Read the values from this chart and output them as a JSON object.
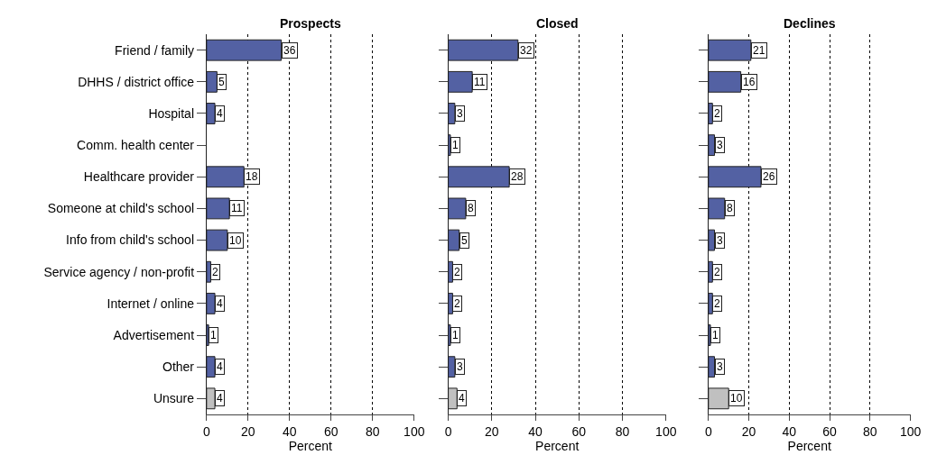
{
  "chart_data": [
    {
      "type": "bar",
      "orientation": "horizontal",
      "title": "Prospects",
      "xlabel": "Percent",
      "categories": [
        "Friend / family",
        "DHHS / district office",
        "Hospital",
        "Comm. health center",
        "Healthcare provider",
        "Someone at child's school",
        "Info from child's school",
        "Service agency / non-profit",
        "Internet / online",
        "Advertisement",
        "Other",
        "Unsure"
      ],
      "values": [
        36,
        5,
        4,
        null,
        18,
        11,
        10,
        2,
        4,
        1,
        4,
        4
      ],
      "colors": [
        "#5361a3",
        "#5361a3",
        "#5361a3",
        "#5361a3",
        "#5361a3",
        "#5361a3",
        "#5361a3",
        "#5361a3",
        "#5361a3",
        "#5361a3",
        "#5361a3",
        "#c0c0c0"
      ],
      "xlim": [
        0,
        100
      ],
      "xticks": [
        0,
        20,
        40,
        60,
        80,
        100
      ],
      "grid": "x",
      "data_labels": true
    },
    {
      "type": "bar",
      "orientation": "horizontal",
      "title": "Closed",
      "xlabel": "Percent",
      "categories": [
        null,
        null,
        null,
        null,
        null,
        null,
        null,
        null,
        null,
        null,
        null,
        null
      ],
      "values": [
        32,
        11,
        3,
        1,
        28,
        8,
        5,
        2,
        2,
        1,
        3,
        4
      ],
      "colors": [
        "#5361a3",
        "#5361a3",
        "#5361a3",
        "#5361a3",
        "#5361a3",
        "#5361a3",
        "#5361a3",
        "#5361a3",
        "#5361a3",
        "#5361a3",
        "#5361a3",
        "#c0c0c0"
      ],
      "xlim": [
        0,
        100
      ],
      "xticks": [
        0,
        20,
        40,
        60,
        80,
        100
      ],
      "grid": "x",
      "data_labels": true,
      "tick_labels": "x"
    },
    {
      "type": "bar",
      "orientation": "horizontal",
      "title": "Declines",
      "xlabel": "Percent",
      "categories": [
        null,
        null,
        null,
        null,
        null,
        null,
        null,
        null,
        null,
        null,
        null,
        null
      ],
      "values": [
        21,
        16,
        2,
        3,
        26,
        8,
        3,
        2,
        2,
        1,
        3,
        10
      ],
      "colors": [
        "#5361a3",
        "#5361a3",
        "#5361a3",
        "#5361a3",
        "#5361a3",
        "#5361a3",
        "#5361a3",
        "#5361a3",
        "#5361a3",
        "#5361a3",
        "#5361a3",
        "#c0c0c0"
      ],
      "xlim": [
        0,
        100
      ],
      "xticks": [
        0,
        20,
        40,
        60,
        80,
        100
      ],
      "grid": "x",
      "data_labels": true,
      "tick_labels": "x"
    }
  ]
}
